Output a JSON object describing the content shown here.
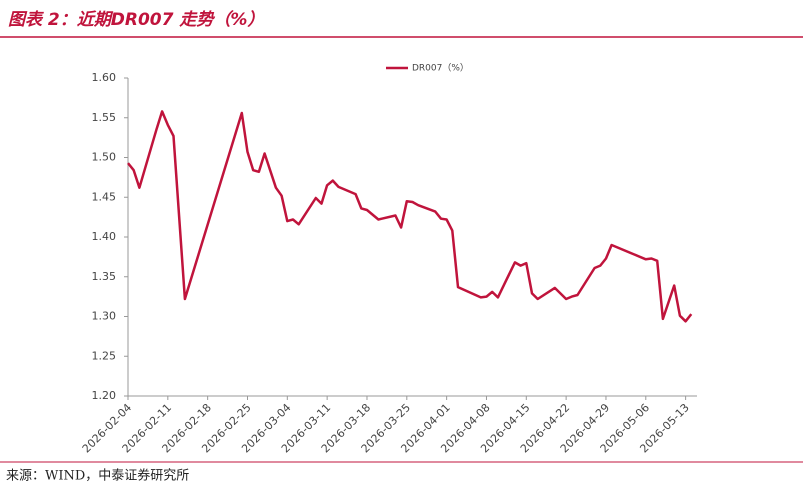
{
  "header": {
    "title": "图表 2：近期DR007 走势（%）"
  },
  "chart_data": {
    "type": "line",
    "x": [
      "2026-02-04",
      "2026-02-05",
      "2026-02-06",
      "2026-02-09",
      "2026-02-10",
      "2026-02-11",
      "2026-02-12",
      "2026-02-14",
      "2026-02-24",
      "2026-02-25",
      "2026-02-26",
      "2026-02-27",
      "2026-02-28",
      "2026-03-02",
      "2026-03-03",
      "2026-03-04",
      "2026-03-05",
      "2026-03-06",
      "2026-03-09",
      "2026-03-10",
      "2026-03-11",
      "2026-03-12",
      "2026-03-13",
      "2026-03-16",
      "2026-03-17",
      "2026-03-18",
      "2026-03-20",
      "2026-03-23",
      "2026-03-24",
      "2026-03-25",
      "2026-03-26",
      "2026-03-27",
      "2026-03-30",
      "2026-03-31",
      "2026-04-01",
      "2026-04-02",
      "2026-04-03",
      "2026-04-07",
      "2026-04-08",
      "2026-04-09",
      "2026-04-10",
      "2026-04-13",
      "2026-04-14",
      "2026-04-15",
      "2026-04-16",
      "2026-04-17",
      "2026-04-20",
      "2026-04-21",
      "2026-04-22",
      "2026-04-23",
      "2026-04-24",
      "2026-04-27",
      "2026-04-28",
      "2026-04-29",
      "2026-04-30",
      "2026-05-06",
      "2026-05-07",
      "2026-05-08",
      "2026-05-09",
      "2026-05-11",
      "2026-05-12",
      "2026-05-13",
      "2026-05-14"
    ],
    "series": [
      {
        "name": "DR007（%）",
        "color": "#c0143c",
        "values": [
          1.493,
          1.484,
          1.462,
          1.535,
          1.558,
          1.541,
          1.527,
          1.322,
          1.556,
          1.507,
          1.484,
          1.482,
          1.505,
          1.462,
          1.452,
          1.42,
          1.422,
          1.416,
          1.449,
          1.442,
          1.465,
          1.471,
          1.463,
          1.454,
          1.436,
          1.434,
          1.422,
          1.427,
          1.412,
          1.445,
          1.444,
          1.44,
          1.432,
          1.423,
          1.422,
          1.408,
          1.337,
          1.324,
          1.325,
          1.331,
          1.324,
          1.368,
          1.364,
          1.367,
          1.329,
          1.322,
          1.336,
          1.329,
          1.322,
          1.325,
          1.327,
          1.361,
          1.364,
          1.373,
          1.39,
          1.372,
          1.373,
          1.37,
          1.297,
          1.339,
          1.301,
          1.294,
          1.303
        ]
      }
    ],
    "xlim": [
      "2026-02-04",
      "2026-05-15"
    ],
    "xticks": [
      "2026-02-04",
      "2026-02-11",
      "2026-02-18",
      "2026-02-25",
      "2026-03-04",
      "2026-03-11",
      "2026-03-18",
      "2026-03-25",
      "2026-04-01",
      "2026-04-08",
      "2026-04-15",
      "2026-04-22",
      "2026-04-29",
      "2026-05-06",
      "2026-05-13"
    ],
    "ylim": [
      1.2,
      1.6
    ],
    "yticks": [
      {
        "value": 1.2,
        "label": "1.20"
      },
      {
        "value": 1.25,
        "label": "1.25"
      },
      {
        "value": 1.3,
        "label": "1.30"
      },
      {
        "value": 1.35,
        "label": "1.35"
      },
      {
        "value": 1.4,
        "label": "1.40"
      },
      {
        "value": 1.45,
        "label": "1.45"
      },
      {
        "value": 1.5,
        "label": "1.50"
      },
      {
        "value": 1.55,
        "label": "1.55"
      },
      {
        "value": 1.6,
        "label": "1.60"
      }
    ],
    "legend": "top"
  },
  "footer": {
    "source": "来源：WIND，中泰证券研究所"
  }
}
